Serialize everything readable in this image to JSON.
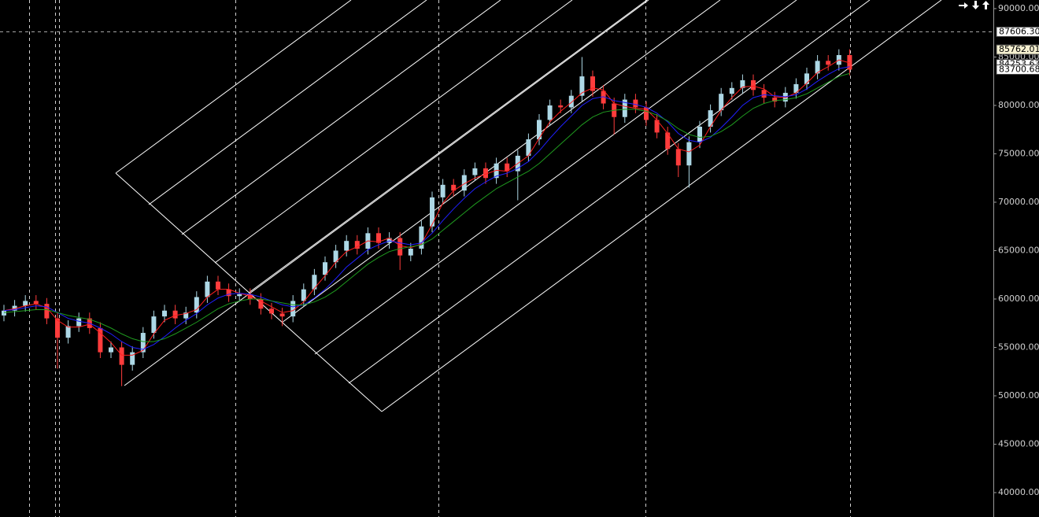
{
  "chart_data": {
    "type": "candlestick",
    "up_color": "#add8e6",
    "down_color": "#ff3c3c",
    "open": [
      58300,
      58800,
      59300,
      59800,
      59500,
      58000,
      56000,
      57200,
      58000,
      57000,
      54500,
      55000,
      53200,
      54500,
      56500,
      58200,
      58800,
      58000,
      58600,
      60200,
      61800,
      61000,
      60300,
      60500,
      60000,
      59000,
      58500,
      58200,
      59800,
      61000,
      62500,
      63800,
      65000,
      66000,
      65200,
      66800,
      65800,
      66300,
      64500,
      65200,
      67500,
      70500,
      71800,
      71200,
      72800,
      73500,
      72500,
      74000,
      73200,
      74800,
      76500,
      78500,
      80000,
      79800,
      81000,
      83000,
      81500,
      80200,
      78800,
      80600,
      79800,
      78500,
      77200,
      75500,
      73800,
      76200,
      77800,
      79500,
      81200,
      81800,
      82600,
      81600,
      80800,
      80400,
      81300,
      82200,
      83300,
      84600,
      84200,
      85200
    ],
    "high": [
      59400,
      59900,
      60400,
      60400,
      60100,
      58600,
      57800,
      58600,
      58600,
      57600,
      55600,
      55600,
      55100,
      57100,
      58800,
      59400,
      59400,
      59200,
      60800,
      62400,
      62400,
      61600,
      61100,
      61100,
      60600,
      59600,
      59100,
      60400,
      61600,
      63100,
      64400,
      65600,
      66600,
      66600,
      67400,
      67400,
      66900,
      66900,
      65800,
      68100,
      71100,
      72400,
      72400,
      73400,
      74100,
      74100,
      74600,
      74600,
      75400,
      77100,
      79100,
      80600,
      80600,
      81600,
      85000,
      83600,
      82100,
      80800,
      81200,
      81200,
      80400,
      79100,
      77800,
      76100,
      76800,
      78400,
      80100,
      81800,
      82400,
      83200,
      83200,
      82200,
      81400,
      81900,
      82800,
      83900,
      85200,
      85200,
      85800,
      85800
    ],
    "low": [
      57700,
      58200,
      58700,
      58900,
      57400,
      52800,
      55400,
      56600,
      56400,
      53900,
      53900,
      51000,
      52600,
      53900,
      55900,
      57600,
      57400,
      57400,
      58000,
      59600,
      60400,
      59700,
      59700,
      59400,
      58400,
      57900,
      57200,
      57600,
      59200,
      60400,
      61900,
      63200,
      64400,
      64600,
      64600,
      65200,
      65200,
      63000,
      63900,
      64600,
      66900,
      69900,
      70600,
      70600,
      72200,
      71900,
      71900,
      72600,
      70200,
      74200,
      75900,
      77900,
      79200,
      79200,
      80400,
      80900,
      79600,
      77000,
      78200,
      79200,
      77900,
      76600,
      74900,
      72600,
      71500,
      75600,
      77200,
      78900,
      80600,
      81200,
      81000,
      80200,
      79800,
      79800,
      80700,
      81600,
      82700,
      83600,
      83600,
      83100
    ],
    "close": [
      58800,
      59300,
      59800,
      59500,
      58000,
      56000,
      57200,
      58000,
      57000,
      54500,
      55000,
      53200,
      54500,
      56500,
      58200,
      58800,
      58000,
      58600,
      60200,
      61800,
      61000,
      60300,
      60500,
      60000,
      59000,
      58500,
      58200,
      59800,
      61000,
      62500,
      63800,
      65000,
      66000,
      65200,
      66800,
      65800,
      66300,
      64500,
      65200,
      67500,
      70500,
      71800,
      71200,
      72800,
      73500,
      72500,
      74000,
      73200,
      74800,
      76500,
      78500,
      80000,
      79800,
      81000,
      83000,
      81500,
      80200,
      78800,
      80600,
      79800,
      78500,
      77200,
      75500,
      73800,
      76200,
      77800,
      79500,
      81200,
      81800,
      82600,
      81600,
      80800,
      80400,
      81300,
      82200,
      83300,
      84600,
      84200,
      85200,
      83700
    ],
    "series": [
      {
        "color": "#ff2020",
        "values": [
          58800,
          59000,
          59300,
          59500,
          59100,
          57800,
          57100,
          57100,
          57400,
          56500,
          55500,
          54200,
          54200,
          54700,
          56400,
          57800,
          58300,
          58500,
          58900,
          60200,
          61000,
          61000,
          60600,
          60300,
          59800,
          59200,
          58600,
          58800,
          59700,
          61100,
          62400,
          63800,
          64900,
          65400,
          66000,
          65900,
          66300,
          65500,
          65300,
          65700,
          67700,
          69900,
          71200,
          71900,
          72500,
          72900,
          73300,
          73200,
          74000,
          74800,
          76600,
          78300,
          79400,
          80300,
          81300,
          81800,
          81600,
          80200,
          79900,
          79700,
          79600,
          78500,
          77100,
          75500,
          75200,
          75900,
          77800,
          79500,
          80800,
          81900,
          82000,
          81700,
          80900,
          80800,
          81300,
          82300,
          83400,
          84000,
          84700,
          84400
        ]
      },
      {
        "color": "#2020ff",
        "values": [
          58800,
          58900,
          59100,
          59300,
          59200,
          58600,
          58000,
          57700,
          57500,
          57000,
          56400,
          55600,
          55000,
          54800,
          55300,
          56100,
          57000,
          57800,
          58500,
          59400,
          60100,
          60500,
          60600,
          60500,
          60200,
          59800,
          59400,
          59200,
          59400,
          60100,
          61000,
          62100,
          63300,
          64200,
          65100,
          65600,
          66000,
          65800,
          65600,
          65800,
          66800,
          68100,
          69300,
          70400,
          71400,
          72100,
          72700,
          73000,
          73500,
          74200,
          75300,
          76600,
          77800,
          78900,
          80000,
          80700,
          80900,
          80500,
          80300,
          80100,
          79800,
          79200,
          78300,
          77100,
          76400,
          76200,
          76700,
          77700,
          78800,
          80000,
          80800,
          81100,
          81000,
          80900,
          81100,
          81700,
          82500,
          83200,
          83800,
          84000
        ]
      },
      {
        "color": "#1f9a1f",
        "values": [
          58600,
          58700,
          58800,
          58900,
          58900,
          58600,
          58300,
          58100,
          57900,
          57500,
          57000,
          56400,
          55900,
          55600,
          55600,
          55900,
          56400,
          57000,
          57600,
          58300,
          59000,
          59500,
          59800,
          60000,
          60000,
          59800,
          59600,
          59400,
          59400,
          59700,
          60200,
          60900,
          61800,
          62700,
          63600,
          64300,
          64900,
          65200,
          65400,
          65600,
          66200,
          67100,
          68000,
          68900,
          69800,
          70600,
          71400,
          72000,
          72600,
          73200,
          74000,
          75000,
          76000,
          77000,
          78000,
          78800,
          79300,
          79500,
          79600,
          79600,
          79400,
          79000,
          78400,
          77600,
          77000,
          76700,
          76800,
          77300,
          78000,
          78900,
          79700,
          80200,
          80500,
          80600,
          80800,
          81200,
          81800,
          82400,
          83000,
          83300
        ]
      }
    ],
    "ylim": [
      37480,
      90890
    ],
    "yticks": [
      {
        "value": 40000,
        "label": "40000.00"
      },
      {
        "value": 45000,
        "label": "45000.00"
      },
      {
        "value": 50000,
        "label": "50000.00"
      },
      {
        "value": 55000,
        "label": "55000.00"
      },
      {
        "value": 60000,
        "label": "60000.00"
      },
      {
        "value": 65000,
        "label": "65000.00"
      },
      {
        "value": 70000,
        "label": "70000.00"
      },
      {
        "value": 75000,
        "label": "75000.00"
      },
      {
        "value": 80000,
        "label": "80000.00"
      },
      {
        "value": 85000,
        "label": "85000.00"
      },
      {
        "value": 90000,
        "label": "90000.00"
      }
    ],
    "price_markers": [
      {
        "value": 87606.3,
        "label": "87606.30",
        "color": "#ffffff",
        "dashed_line": true
      },
      {
        "value": 85762.01,
        "label": "85762.01",
        "color": "#f5f0d0"
      },
      {
        "value": 84253.63,
        "label": "84253.63",
        "color": "#ffffff"
      },
      {
        "value": 83700.68,
        "label": "83700.68",
        "color": "#ffffff"
      }
    ]
  }
}
